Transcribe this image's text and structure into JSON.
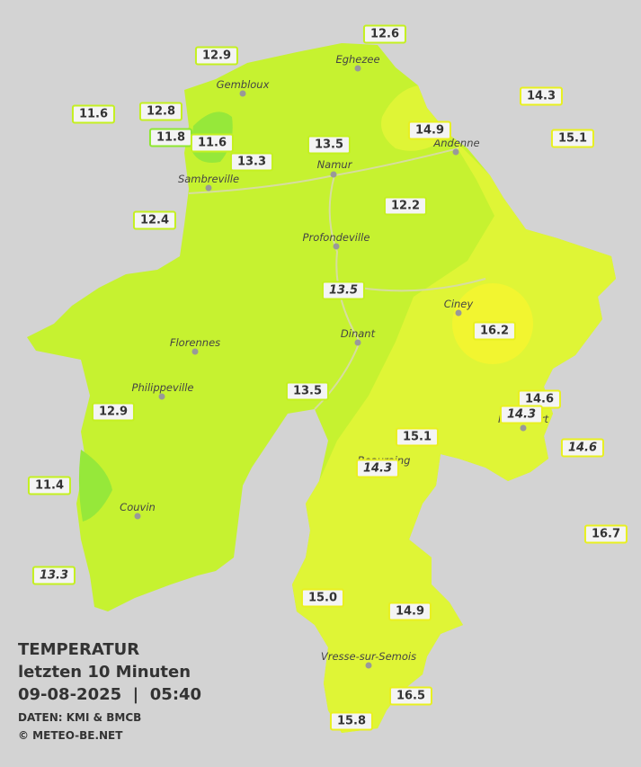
{
  "title": {
    "line1": "TEMPERATUR",
    "line2": "letzten 10 Minuten",
    "line3": "09-08-2025  |  05:40",
    "source": "DATEN: KMI & BMCB",
    "copyright": "© METEO-BE.NET"
  },
  "cities": [
    "Eghezee",
    "Gembloux",
    "Andenne",
    "Namur",
    "Sambreville",
    "Profondeville",
    "Ciney",
    "Dinant",
    "Florennes",
    "Philippeville",
    "Rochefort",
    "Beauraing",
    "Couvin",
    "Vresse-sur-Semois"
  ],
  "stations": [
    "12.6",
    "12.9",
    "14.3",
    "11.6",
    "12.8",
    "14.9",
    "15.1",
    "11.8",
    "11.6",
    "13.5",
    "13.3",
    "12.2",
    "12.4",
    "13.5",
    "16.2",
    "13.5",
    "14.6",
    "14.3",
    "12.9",
    "15.1",
    "14.6",
    "14.3",
    "11.4",
    "16.7",
    "13.3",
    "15.0",
    "14.9",
    "16.5",
    "15.8"
  ]
}
